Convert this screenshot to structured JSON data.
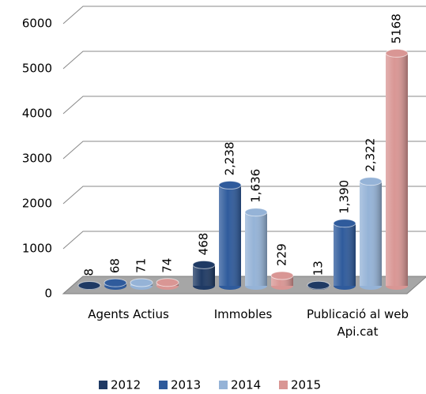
{
  "chart_data": {
    "type": "bar3d",
    "categories": [
      "Agents Actius",
      "Immobles",
      "Publicació al web Api.cat"
    ],
    "series": [
      {
        "name": "2012",
        "color": "#1f3a64",
        "values": [
          8,
          468,
          13
        ],
        "value_labels": [
          "8",
          "468",
          "13"
        ]
      },
      {
        "name": "2013",
        "color": "#2f5b9c",
        "values": [
          68,
          2238,
          1390
        ],
        "value_labels": [
          "68",
          "2,238",
          "1,390"
        ]
      },
      {
        "name": "2014",
        "color": "#95b3d7",
        "values": [
          71,
          1636,
          2322
        ],
        "value_labels": [
          "71",
          "1,636",
          "2,322"
        ]
      },
      {
        "name": "2015",
        "color": "#d99694",
        "values": [
          74,
          229,
          5168
        ],
        "value_labels": [
          "74",
          "229",
          "5168"
        ]
      }
    ],
    "ylim": [
      0,
      6000
    ],
    "yticks": [
      0,
      1000,
      2000,
      3000,
      4000,
      5000,
      6000
    ],
    "grid": true,
    "legend": "bottom"
  }
}
